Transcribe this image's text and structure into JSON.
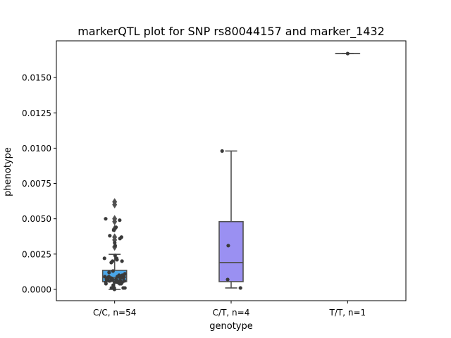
{
  "chart_data": {
    "type": "box",
    "title": "markerQTL plot for SNP rs80044157 and marker_1432",
    "xlabel": "genotype",
    "ylabel": "phenotype",
    "ylim": [
      -0.0008,
      0.0176
    ],
    "yticks": [
      0.0,
      0.0025,
      0.005,
      0.0075,
      0.01,
      0.0125,
      0.015
    ],
    "ytick_labels": [
      "0.0000",
      "0.0025",
      "0.0050",
      "0.0075",
      "0.0100",
      "0.0125",
      "0.0150"
    ],
    "categories": [
      "C/C, n=54",
      "C/T, n=4",
      "T/T, n=1"
    ],
    "colors": [
      "#4aa6e8",
      "#9a90f2",
      "#c58cf0"
    ],
    "line_color": "#505050",
    "point_color": "#3a3a3a",
    "boxes": [
      {
        "q1": 0.00055,
        "median": 0.00085,
        "q3": 0.00135,
        "whisker_low": 0.0,
        "whisker_high": 0.00248,
        "outliers": [
          0.003,
          0.0035,
          0.0037,
          0.0043,
          0.0048,
          0.005,
          0.006,
          0.0062
        ]
      },
      {
        "q1": 0.00055,
        "median": 0.0019,
        "q3": 0.0048,
        "whisker_low": 0.0001,
        "whisker_high": 0.0098,
        "outliers": []
      },
      {
        "q1": 0.0167,
        "median": 0.0167,
        "q3": 0.0167,
        "whisker_low": 0.0167,
        "whisker_high": 0.0167,
        "outliers": []
      }
    ],
    "points": [
      [
        0.0049,
        0.0044,
        0.0042,
        0.0038,
        0.0037,
        0.0036,
        0.0033,
        0.0031,
        0.0024,
        0.0022,
        0.0022,
        0.0021,
        0.002,
        0.002,
        0.0019,
        0.0013,
        0.0012,
        0.0011,
        0.001,
        0.001,
        0.0009,
        0.0009,
        0.0009,
        0.0009,
        0.0009,
        0.0008,
        0.0008,
        0.0008,
        0.0008,
        0.0008,
        0.0007,
        0.0007,
        0.0007,
        0.0007,
        0.0007,
        0.0006,
        0.0006,
        0.0006,
        0.0006,
        0.0006,
        0.0005,
        0.0005,
        0.0005,
        0.0005,
        0.0004,
        0.0004,
        0.0004,
        0.0003,
        0.0001,
        0.0001,
        0.0001,
        0.0001,
        0.0,
        0.005
      ],
      [
        0.0098,
        0.0031,
        0.0007,
        0.0001
      ],
      [
        0.0167
      ]
    ]
  }
}
